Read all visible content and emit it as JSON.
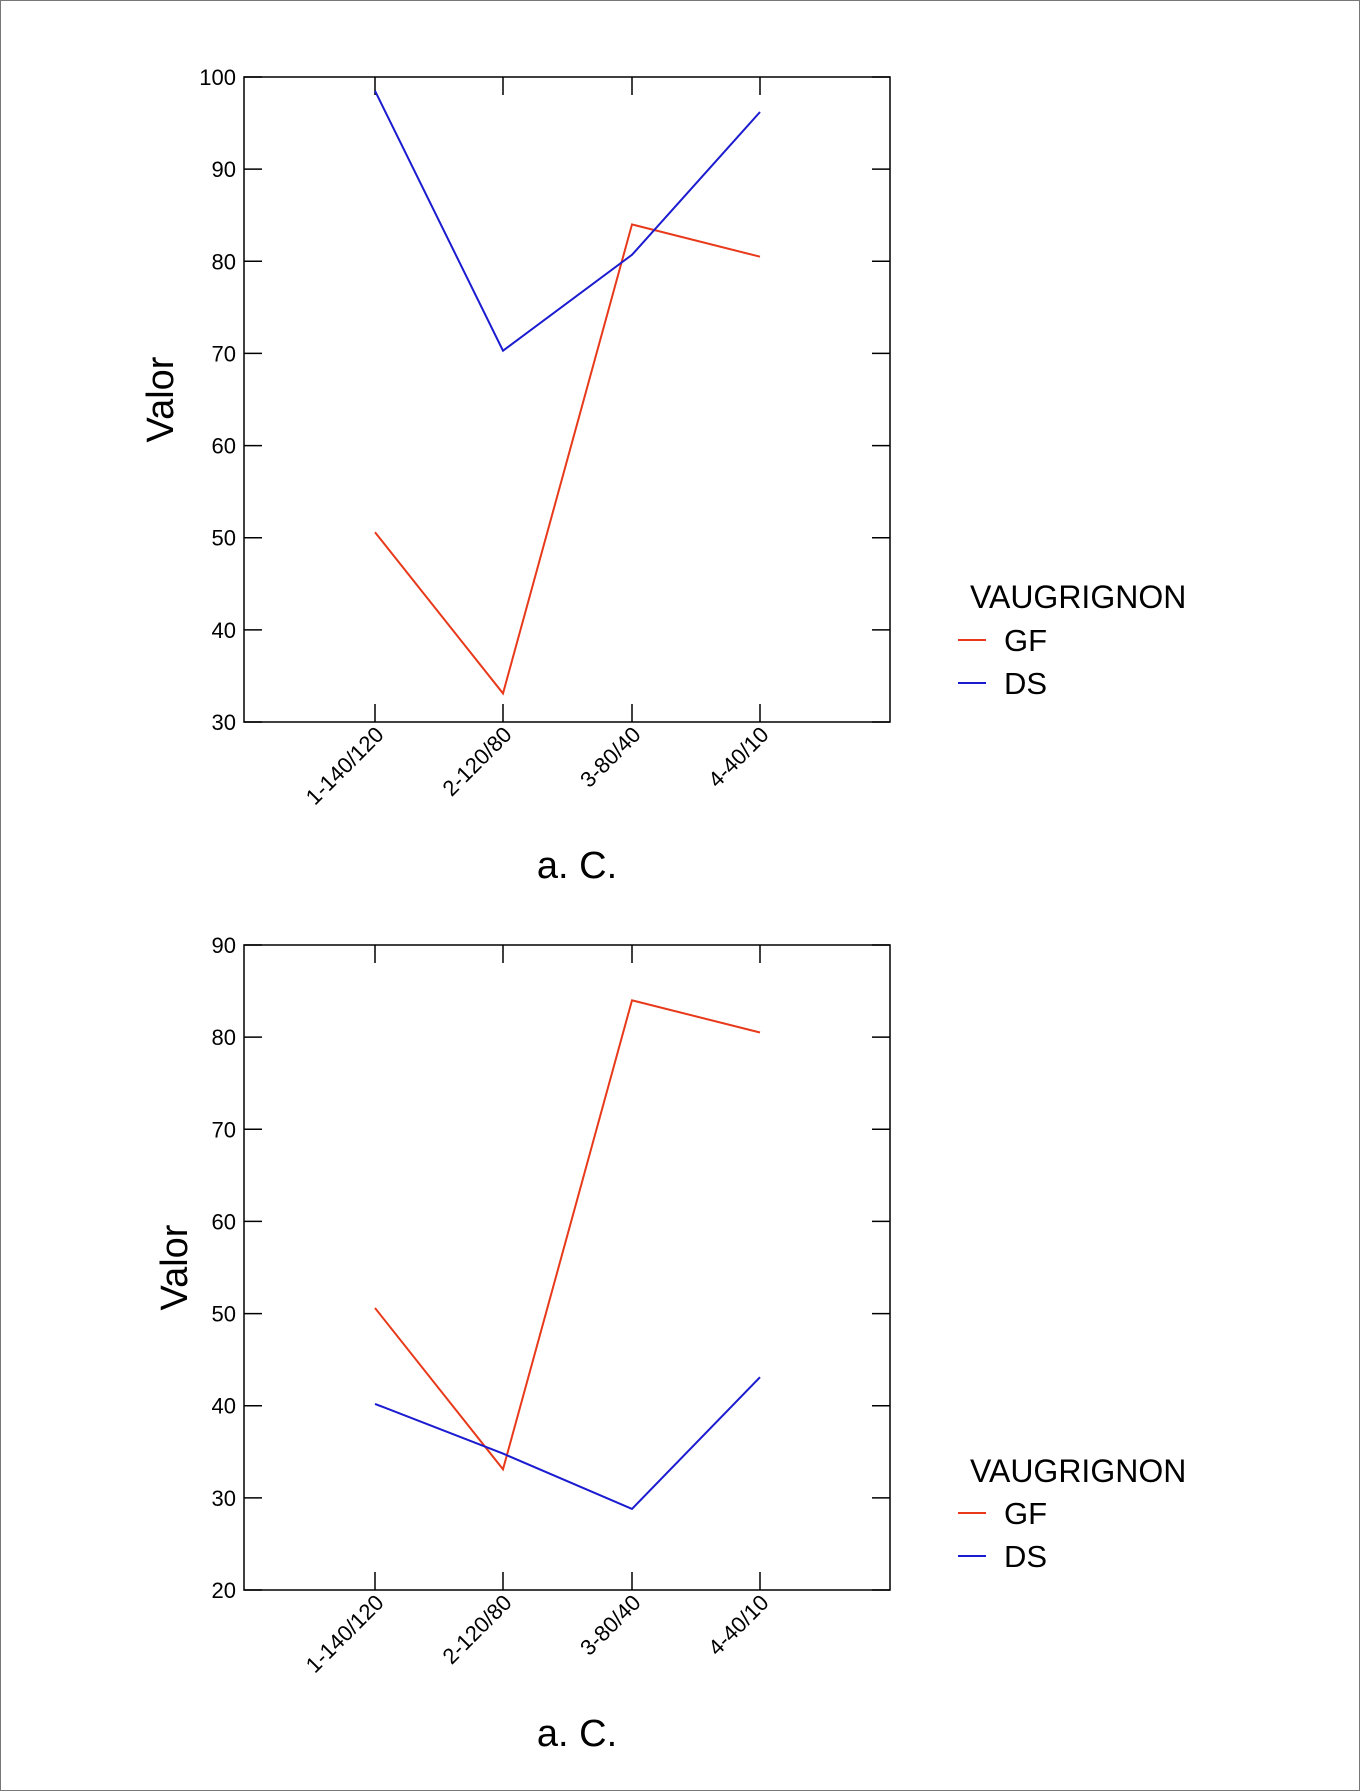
{
  "chart_data": [
    {
      "type": "line",
      "categories": [
        "1-140/120",
        "2-120/80",
        "3-80/40",
        "4-40/10"
      ],
      "series": [
        {
          "name": "GF",
          "color": "#e8391b",
          "values": [
            50.6,
            33.1,
            84.0,
            80.5
          ]
        },
        {
          "name": "DS",
          "color": "#1b1bd0",
          "values": [
            98.5,
            70.3,
            80.7,
            96.2
          ]
        }
      ],
      "yticks": [
        30,
        40,
        50,
        60,
        70,
        80,
        90,
        100
      ],
      "ylim": [
        30,
        100
      ],
      "xlabel": "a. C.",
      "ylabel": "Valor",
      "legend_title": "VAUGRIGNON",
      "legend_position": "right",
      "grid": false
    },
    {
      "type": "line",
      "categories": [
        "1-140/120",
        "2-120/80",
        "3-80/40",
        "4-40/10"
      ],
      "series": [
        {
          "name": "GF",
          "color": "#e8391b",
          "values": [
            50.6,
            33.1,
            84.0,
            80.5
          ]
        },
        {
          "name": "DS",
          "color": "#1b1bd0",
          "values": [
            40.2,
            34.8,
            28.8,
            43.1
          ]
        }
      ],
      "yticks": [
        20,
        30,
        40,
        50,
        60,
        70,
        80,
        90
      ],
      "ylim": [
        20,
        90
      ],
      "xlabel": "a. C.",
      "ylabel": "Valor",
      "legend_title": "VAUGRIGNON",
      "legend_position": "right",
      "grid": false
    }
  ]
}
